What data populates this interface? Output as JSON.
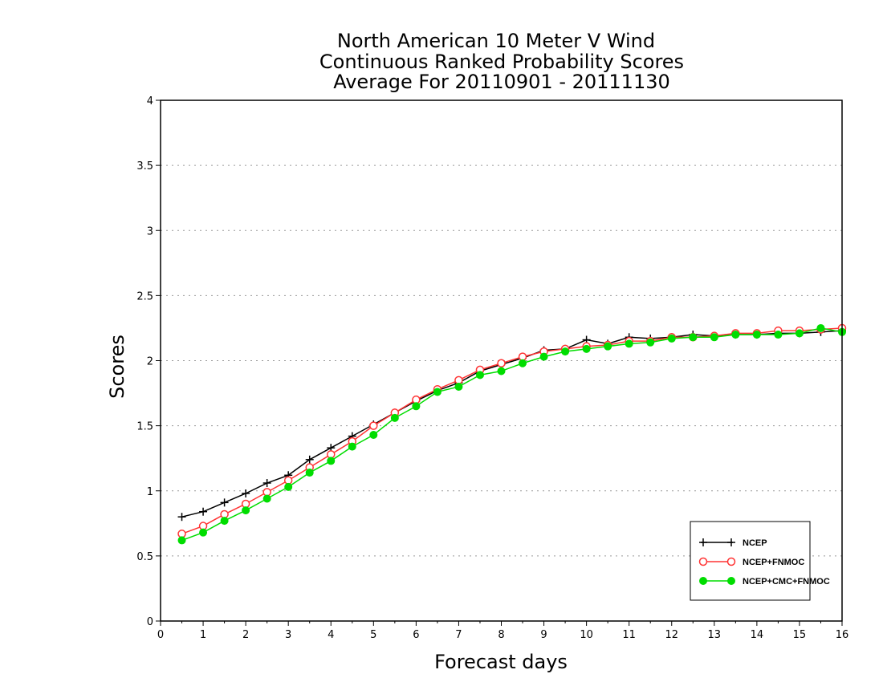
{
  "chart_data": {
    "type": "line",
    "title": [
      "North American 10 Meter V Wind",
      "Continuous Ranked Probability Scores",
      "Average For 20110901 - 20111130"
    ],
    "xlabel": "Forecast days",
    "ylabel": "Scores",
    "xlim": [
      0,
      16
    ],
    "ylim": [
      0,
      4
    ],
    "x_ticks": [
      0,
      1,
      2,
      3,
      4,
      5,
      6,
      7,
      8,
      9,
      10,
      11,
      12,
      13,
      14,
      15,
      16
    ],
    "y_ticks": [
      0,
      0.5,
      1,
      1.5,
      2,
      2.5,
      3,
      3.5,
      4
    ],
    "y_tick_labels": [
      "0",
      "0.5",
      "1",
      "1.5",
      "2",
      "2.5",
      "3",
      "3.5",
      "4"
    ],
    "grid": "horizontal dotted",
    "legend_position": "bottom-right",
    "x": [
      0.5,
      1,
      1.5,
      2,
      2.5,
      3,
      3.5,
      4,
      4.5,
      5,
      5.5,
      6,
      6.5,
      7,
      7.5,
      8,
      8.5,
      9,
      9.5,
      10,
      10.5,
      11,
      11.5,
      12,
      12.5,
      13,
      13.5,
      14,
      14.5,
      15,
      15.5,
      16
    ],
    "series": [
      {
        "name": "NCEP",
        "color": "#000000",
        "marker": "plus",
        "values": [
          0.8,
          0.84,
          0.91,
          0.98,
          1.06,
          1.12,
          1.24,
          1.33,
          1.42,
          1.51,
          1.6,
          1.69,
          1.77,
          1.83,
          1.92,
          1.97,
          2.02,
          2.08,
          2.09,
          2.16,
          2.13,
          2.18,
          2.17,
          2.18,
          2.2,
          2.19,
          2.2,
          2.2,
          2.21,
          2.21,
          2.22,
          2.23
        ]
      },
      {
        "name": "NCEP+FNMOC",
        "color": "#ff3333",
        "marker": "open-circle",
        "values": [
          0.67,
          0.73,
          0.82,
          0.9,
          0.99,
          1.08,
          1.18,
          1.28,
          1.38,
          1.5,
          1.6,
          1.7,
          1.78,
          1.85,
          1.93,
          1.98,
          2.03,
          2.07,
          2.09,
          2.11,
          2.12,
          2.15,
          2.15,
          2.18,
          2.18,
          2.19,
          2.21,
          2.21,
          2.23,
          2.23,
          2.24,
          2.25
        ]
      },
      {
        "name": "NCEP+CMC+FNMOC",
        "color": "#00dd00",
        "marker": "filled-circle",
        "values": [
          0.62,
          0.68,
          0.77,
          0.85,
          0.94,
          1.03,
          1.14,
          1.23,
          1.34,
          1.43,
          1.56,
          1.65,
          1.76,
          1.8,
          1.89,
          1.92,
          1.98,
          2.03,
          2.07,
          2.09,
          2.11,
          2.13,
          2.14,
          2.17,
          2.18,
          2.18,
          2.2,
          2.2,
          2.2,
          2.21,
          2.25,
          2.22
        ]
      }
    ]
  }
}
